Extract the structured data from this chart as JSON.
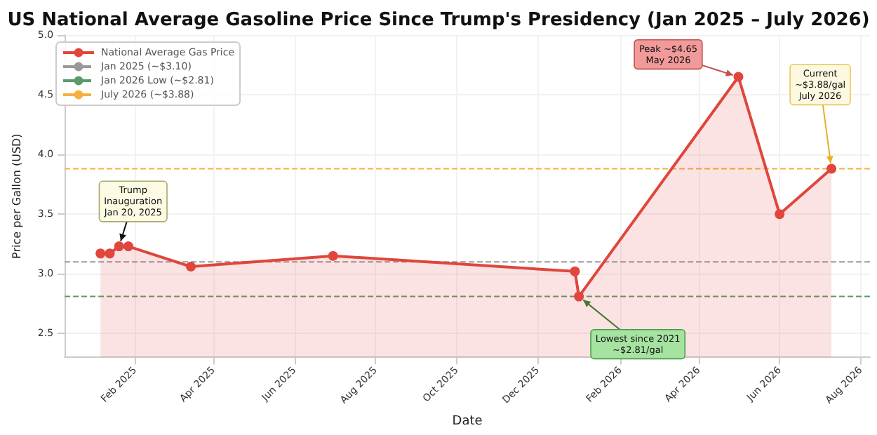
{
  "chart_data": {
    "type": "area",
    "title": "US National Average Gasoline Price Since Trump's Presidency (Jan 2025 – July 2026)",
    "xlabel": "Date",
    "ylabel": "Price per Gallon (USD)",
    "x": [
      "2025-01-06",
      "2025-01-13",
      "2025-01-20",
      "2025-01-27",
      "2025-03-15",
      "2025-06-30",
      "2025-12-29",
      "2026-01-01",
      "2026-05-01",
      "2026-06-01",
      "2026-07-10"
    ],
    "series": [
      {
        "name": "National Average Gas Price",
        "color": "#e0463c",
        "values": [
          3.17,
          3.17,
          3.23,
          3.23,
          3.06,
          3.15,
          3.02,
          2.81,
          4.65,
          3.5,
          3.88
        ]
      }
    ],
    "marker": "circle",
    "xlim": [
      "2024-12-10",
      "2026-08-08"
    ],
    "xticks": [
      {
        "value": "2025-02-01",
        "label": "Feb 2025"
      },
      {
        "value": "2025-04-01",
        "label": "Apr 2025"
      },
      {
        "value": "2025-06-01",
        "label": "Jun 2025"
      },
      {
        "value": "2025-08-01",
        "label": "Aug 2025"
      },
      {
        "value": "2025-10-01",
        "label": "Oct 2025"
      },
      {
        "value": "2025-12-01",
        "label": "Dec 2025"
      },
      {
        "value": "2026-02-01",
        "label": "Feb 2026"
      },
      {
        "value": "2026-04-01",
        "label": "Apr 2026"
      },
      {
        "value": "2026-06-01",
        "label": "Jun 2026"
      },
      {
        "value": "2026-08-01",
        "label": "Aug 2026"
      }
    ],
    "ylim": [
      2.3,
      5.0
    ],
    "yticks": [
      2.5,
      {
        "value": 3,
        "label": "3.0"
      },
      3.5,
      {
        "value": 4,
        "label": "4.0"
      },
      4.5,
      {
        "value": 5,
        "label": "5.0"
      }
    ],
    "grid": true,
    "legend": "top left",
    "ref_lines": [
      {
        "axis": "y",
        "value": 3.1,
        "label": "Jan 2025 (~$3.10)",
        "color": "#999999",
        "line_style": "dashed"
      },
      {
        "axis": "y",
        "value": 2.81,
        "label": "Jan 2026 Low (~$2.81)",
        "color": "#5a9a6a",
        "line_style": "dashed"
      },
      {
        "axis": "y",
        "value": 3.88,
        "label": "July 2026 (~$3.88)",
        "color": "#f5b041",
        "line_style": "dashed"
      }
    ],
    "annotations": [
      {
        "text": "Trump\nInauguration\nJan 20, 2025",
        "x": "2025-01-20",
        "y": 3.23
      },
      {
        "text": "Peak ~$4.65\nMay 2026",
        "x": "2026-05-01",
        "y": 4.65
      },
      {
        "text": "Lowest since 2021\n~$2.81/gal",
        "x": "2026-01-01",
        "y": 2.81
      },
      {
        "text": "Current\n~$3.88/gal\nJuly 2026",
        "x": "2026-07-10",
        "y": 3.88
      }
    ]
  }
}
